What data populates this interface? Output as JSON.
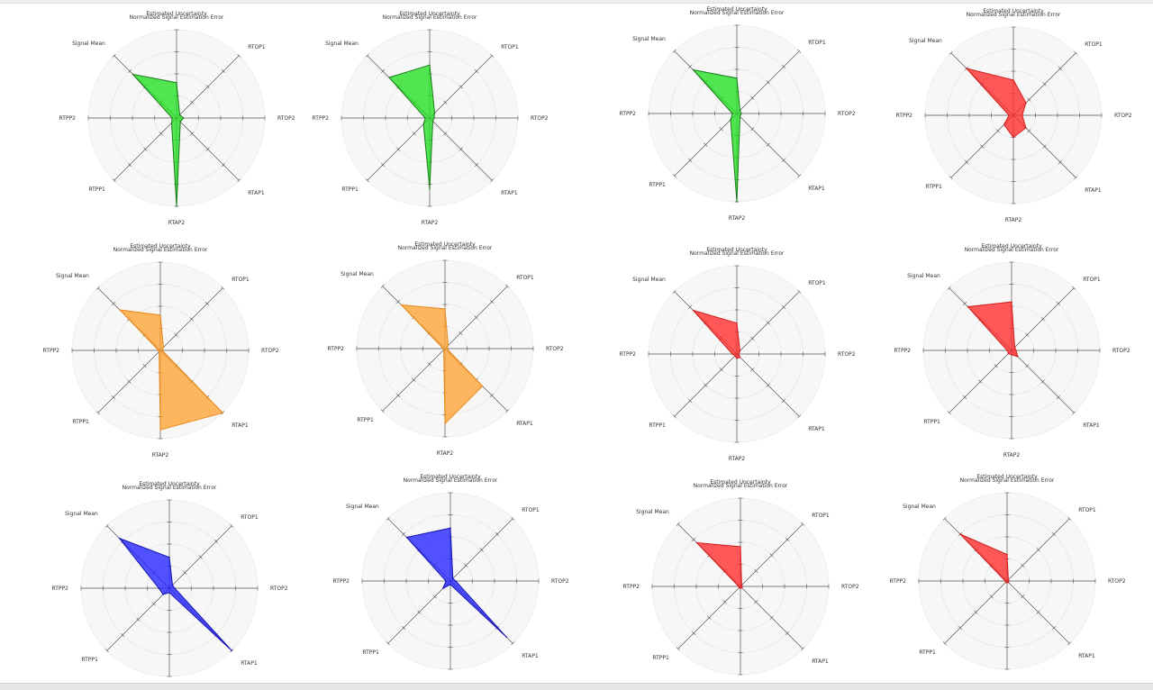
{
  "chart_data": {
    "axes": [
      "Estimated Uncertainty",
      "RTOP1",
      "RTOP2",
      "RTAP1",
      "RTAP2",
      "RTPP1",
      "RTPP2",
      "Signal Mean"
    ],
    "scale": [
      0,
      1
    ],
    "grid_rings": 4,
    "colors": {
      "green": {
        "fill": "#22e022",
        "stroke": "#1b7a1b"
      },
      "orange": {
        "fill": "#ffa333",
        "stroke": "#e68a1a"
      },
      "red": {
        "fill": "#ff2a2a",
        "stroke": "#d01f1f"
      },
      "blue": {
        "fill": "#2222ff",
        "stroke": "#1515b0"
      }
    },
    "charts": [
      {
        "type": "radar",
        "title": "Normalized Signal Estimation Error",
        "color": "green",
        "values": [
          0.4,
          0.05,
          0.08,
          0.06,
          1.0,
          0.08,
          0.05,
          0.7
        ]
      },
      {
        "type": "radar",
        "title": "Normalized Signal Estimation Error",
        "color": "green",
        "values": [
          0.6,
          0.08,
          0.05,
          0.05,
          0.8,
          0.1,
          0.05,
          0.65
        ]
      },
      {
        "type": "radar",
        "title": "Normalized Signal Estimation Error",
        "color": "green",
        "values": [
          0.4,
          0.05,
          0.05,
          0.05,
          1.0,
          0.1,
          0.05,
          0.7
        ]
      },
      {
        "type": "radar",
        "title": "Normalized Signal Estimation Error",
        "color": "red",
        "values": [
          0.4,
          0.2,
          0.1,
          0.2,
          0.25,
          0.15,
          0.05,
          0.75
        ]
      },
      {
        "type": "radar",
        "title": "Normalized Signal Estimation Error",
        "color": "orange",
        "values": [
          0.4,
          0.05,
          0.02,
          1.0,
          0.9,
          0.02,
          0.02,
          0.65
        ]
      },
      {
        "type": "radar",
        "title": "Normalized Signal Estimation Error",
        "color": "orange",
        "values": [
          0.45,
          0.05,
          0.02,
          0.6,
          0.85,
          0.02,
          0.02,
          0.7
        ]
      },
      {
        "type": "radar",
        "title": "Normalized Signal Estimation Error",
        "color": "red",
        "values": [
          0.35,
          0.05,
          0.02,
          0.05,
          0.05,
          0.03,
          0.05,
          0.7
        ]
      },
      {
        "type": "radar",
        "title": "Normalized Signal Estimation Error",
        "color": "red",
        "values": [
          0.55,
          0.05,
          0.05,
          0.1,
          0.05,
          0.05,
          0.05,
          0.7
        ]
      },
      {
        "type": "radar",
        "title": "Normalized Signal Estimation Error",
        "color": "blue",
        "values": [
          0.35,
          0.05,
          0.06,
          1.0,
          0.05,
          0.1,
          0.12,
          0.8
        ]
      },
      {
        "type": "radar",
        "title": "Normalized Signal Estimation Error",
        "color": "blue",
        "values": [
          0.6,
          0.04,
          0.06,
          0.9,
          0.04,
          0.12,
          0.05,
          0.7
        ]
      },
      {
        "type": "radar",
        "title": "Normalized Signal Estimation Error",
        "color": "red",
        "values": [
          0.45,
          0.02,
          0.02,
          0.02,
          0.02,
          0.02,
          0.02,
          0.7
        ]
      },
      {
        "type": "radar",
        "title": "Normalized Signal Estimation Error",
        "color": "red",
        "values": [
          0.3,
          0.02,
          0.02,
          0.02,
          0.02,
          0.02,
          0.02,
          0.75
        ]
      }
    ]
  }
}
